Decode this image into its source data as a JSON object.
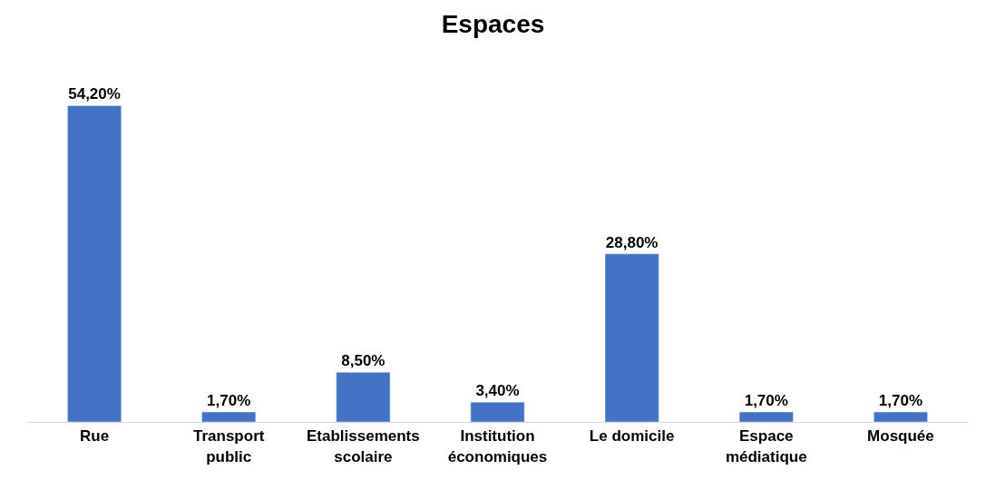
{
  "chart_data": {
    "type": "bar",
    "title": "Espaces",
    "categories": [
      "Rue",
      "Transport\npublic",
      "Etablissements\nscolaire",
      "Institution\néconomiques",
      "Le domicile",
      "Espace\nmédiatique",
      "Mosquée"
    ],
    "values": [
      54.2,
      1.7,
      8.5,
      3.4,
      28.8,
      1.7,
      1.7
    ],
    "value_labels": [
      "54,20%",
      "1,70%",
      "8,50%",
      "3,40%",
      "28,80%",
      "1,70%",
      "1,70%"
    ],
    "color": "#4472c4"
  }
}
